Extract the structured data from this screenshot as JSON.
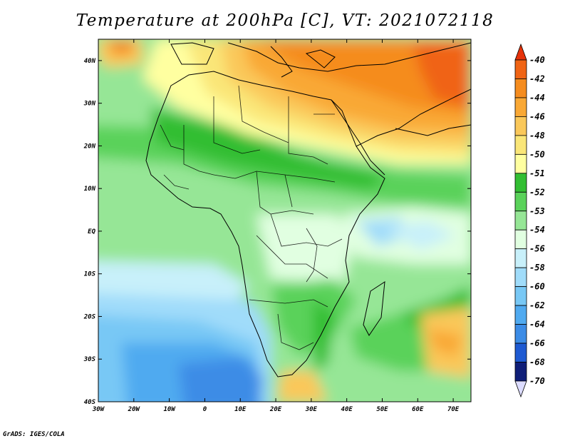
{
  "title": "Temperature at 200hPa [C], VT: 2021072118",
  "credit": "GrADS: IGES/COLA",
  "map": {
    "lat_labels": [
      "40N",
      "30N",
      "20N",
      "10N",
      "EQ",
      "10S",
      "20S",
      "30S",
      "40S"
    ],
    "lon_labels": [
      "30W",
      "20W",
      "10W",
      "0",
      "10E",
      "20E",
      "30E",
      "40E",
      "50E",
      "60E",
      "70E"
    ],
    "lat_range": [
      -40,
      45
    ],
    "lon_range": [
      -30,
      75
    ]
  },
  "colorbar": {
    "levels": [
      "-40",
      "-42",
      "-44",
      "-46",
      "-48",
      "-50",
      "-51",
      "-52",
      "-53",
      "-54",
      "-56",
      "-58",
      "-60",
      "-62",
      "-64",
      "-66",
      "-68",
      "-70"
    ],
    "colors": [
      "#e6320a",
      "#f06414",
      "#f58c1e",
      "#f9a835",
      "#fac85a",
      "#fae678",
      "#ffffa0",
      "#32be32",
      "#5ad25a",
      "#96e696",
      "#e1ffe1",
      "#c8f0fa",
      "#a0dcfa",
      "#78c8f5",
      "#50aaf0",
      "#3c8ce6",
      "#1e5ad2",
      "#0f1e78",
      "#dcdcff"
    ]
  }
}
